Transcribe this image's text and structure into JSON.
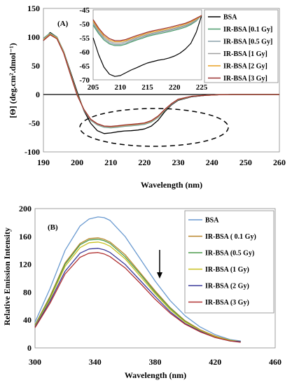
{
  "chart_data": [
    {
      "type": "line",
      "panel_label": "(A)",
      "xlabel": "Wavelength (nm)",
      "ylabel": "[Θ] (deg.cm².dmol⁻¹)",
      "xlim": [
        190,
        260
      ],
      "ylim": [
        -100,
        150
      ],
      "xticks": [
        "190",
        "200",
        "210",
        "220",
        "230",
        "240",
        "250",
        "260"
      ],
      "yticks": [
        "150",
        "100",
        "50",
        "0",
        "-50",
        "-100"
      ],
      "legend_position": "top-right",
      "annotations": [
        "dashed ellipse highlighting region 205–225 nm"
      ],
      "x": [
        190,
        192,
        194,
        196,
        198,
        200,
        202,
        204,
        206,
        208,
        210,
        212,
        214,
        216,
        218,
        220,
        222,
        224,
        226,
        228,
        230,
        234,
        238,
        242,
        246,
        250,
        255,
        260
      ],
      "series": [
        {
          "name": "BSA",
          "color": "#000000",
          "values": [
            94,
            108,
            100,
            75,
            40,
            5,
            -28,
            -50,
            -63,
            -68,
            -67,
            -65,
            -63.5,
            -63,
            -62,
            -60,
            -55,
            -45,
            -30,
            -18,
            -10,
            -4,
            -1.5,
            -0.5,
            0,
            0,
            0,
            0
          ]
        },
        {
          "name": "IR-BSA [0.1 Gy]",
          "color": "#4a9a6a",
          "values": [
            98,
            107,
            100,
            75,
            38,
            2,
            -27,
            -45,
            -53,
            -57,
            -58,
            -57,
            -55.5,
            -54.5,
            -53.5,
            -52,
            -48,
            -40,
            -28,
            -17,
            -9,
            -3.5,
            -1.5,
            -0.5,
            0,
            0,
            0,
            0
          ]
        },
        {
          "name": "IR-BSA [0.5 Gy]",
          "color": "#8aa0a8",
          "values": [
            97,
            106,
            99,
            74,
            37,
            1,
            -27,
            -44.5,
            -52.5,
            -56.5,
            -57.5,
            -56.5,
            -55,
            -54,
            -53,
            -51.5,
            -47.5,
            -39.5,
            -27.5,
            -17,
            -9,
            -3.5,
            -1.5,
            -0.5,
            0,
            0,
            0,
            0
          ]
        },
        {
          "name": "IR-BSA [1 Gy]",
          "color": "#a0a0a0",
          "values": [
            96,
            106,
            99,
            74,
            37,
            1,
            -26.5,
            -44,
            -52,
            -56,
            -57,
            -56,
            -54.5,
            -53.5,
            -52.5,
            -51,
            -47,
            -39,
            -27,
            -16.5,
            -8.5,
            -3.5,
            -1.5,
            -0.5,
            0,
            0,
            0,
            0
          ]
        },
        {
          "name": "IR-BSA [2 Gy]",
          "color": "#e8a020",
          "values": [
            95,
            105,
            98,
            73,
            36,
            0,
            -26,
            -43,
            -51,
            -55,
            -56,
            -55,
            -53.5,
            -52.5,
            -51.5,
            -50,
            -46,
            -38,
            -26.5,
            -16,
            -8.5,
            -3,
            -1.5,
            -0.5,
            0,
            0,
            0,
            0
          ]
        },
        {
          "name": "IR-BSA [3 Gy]",
          "color": "#9a3030",
          "values": [
            94,
            104,
            97,
            72,
            35,
            -1,
            -26,
            -43,
            -51,
            -55,
            -55.5,
            -54.5,
            -53,
            -52,
            -51,
            -49.5,
            -45.5,
            -37.5,
            -26,
            -16,
            -8,
            -3,
            -1.5,
            -0.5,
            0,
            0,
            0,
            0
          ]
        }
      ]
    },
    {
      "type": "line",
      "subtype": "inset",
      "xlim": [
        205,
        225
      ],
      "ylim": [
        -70,
        -45
      ],
      "xticks": [
        "205",
        "210",
        "215",
        "220",
        "225"
      ],
      "yticks": [
        "-45",
        "-50",
        "-55",
        "-60",
        "-65",
        "-70"
      ],
      "x": [
        205,
        206,
        207,
        208,
        209,
        210,
        211,
        212,
        213,
        214,
        215,
        216,
        217,
        218,
        219,
        220,
        221,
        222,
        223,
        224,
        225
      ],
      "series": [
        {
          "name": "BSA",
          "color": "#000000",
          "values": [
            -55,
            -61,
            -65.5,
            -68,
            -68.8,
            -68.5,
            -67.5,
            -66.5,
            -65.7,
            -64.8,
            -64,
            -63.5,
            -63,
            -62.7,
            -62.2,
            -61.5,
            -60.5,
            -59,
            -57,
            -53,
            -47
          ]
        },
        {
          "name": "IR-BSA [0.1 Gy]",
          "color": "#4a9a6a",
          "values": [
            -50.5,
            -53.5,
            -55.8,
            -57.2,
            -57.8,
            -57.8,
            -57.3,
            -56.5,
            -55.8,
            -55.2,
            -54.5,
            -54,
            -53.6,
            -53.2,
            -52.8,
            -52.3,
            -51.8,
            -51.2,
            -50.3,
            -49,
            -47
          ]
        },
        {
          "name": "IR-BSA [0.5 Gy]",
          "color": "#8aa0a8",
          "values": [
            -50,
            -53,
            -55.3,
            -56.8,
            -57.4,
            -57.4,
            -56.9,
            -56.1,
            -55.4,
            -54.8,
            -54.1,
            -53.6,
            -53.2,
            -52.8,
            -52.4,
            -51.9,
            -51.4,
            -50.8,
            -50,
            -48.8,
            -47
          ]
        },
        {
          "name": "IR-BSA [1 Gy]",
          "color": "#a0a0a0",
          "values": [
            -49.5,
            -52.5,
            -54.8,
            -56.3,
            -56.9,
            -56.9,
            -56.4,
            -55.7,
            -55,
            -54.4,
            -53.8,
            -53.3,
            -52.9,
            -52.5,
            -52.1,
            -51.6,
            -51.1,
            -50.5,
            -49.7,
            -48.6,
            -47
          ]
        },
        {
          "name": "IR-BSA [2 Gy]",
          "color": "#e8a020",
          "values": [
            -49,
            -52,
            -54.3,
            -55.8,
            -56.4,
            -56.4,
            -56,
            -55.3,
            -54.6,
            -54,
            -53.4,
            -52.9,
            -52.5,
            -52.1,
            -51.7,
            -51.2,
            -50.7,
            -50.1,
            -49.3,
            -48.3,
            -47
          ]
        },
        {
          "name": "IR-BSA [3 Gy]",
          "color": "#9a3030",
          "values": [
            -48.5,
            -51.5,
            -53.8,
            -55.3,
            -56,
            -56,
            -55.6,
            -54.9,
            -54.2,
            -53.6,
            -53,
            -52.5,
            -52.1,
            -51.7,
            -51.3,
            -50.8,
            -50.3,
            -49.8,
            -49,
            -48,
            -47
          ]
        }
      ]
    },
    {
      "type": "line",
      "panel_label": "(B)",
      "xlabel": "Wavelength (nm)",
      "ylabel": "Relative Emission Intensity",
      "xlim": [
        300,
        460
      ],
      "ylim": [
        0,
        200
      ],
      "xticks": [
        "300",
        "340",
        "380",
        "420",
        "460"
      ],
      "yticks": [
        "200",
        "160",
        "120",
        "80",
        "40",
        "0"
      ],
      "legend_position": "top-right",
      "annotations": [
        "downward arrow indicating decreasing intensity"
      ],
      "x": [
        300,
        310,
        320,
        330,
        336,
        342,
        346,
        350,
        360,
        370,
        380,
        390,
        400,
        410,
        420,
        430,
        437
      ],
      "series": [
        {
          "name": "BSA",
          "color": "#6a9ad0",
          "values": [
            37,
            85,
            140,
            175,
            185,
            188,
            187,
            183,
            160,
            128,
            96,
            68,
            46,
            30,
            19,
            12,
            10
          ]
        },
        {
          "name": "IR-BSA ( 0.1 Gy)",
          "color": "#b8862a",
          "values": [
            33,
            74,
            122,
            150,
            157,
            158,
            156,
            152,
            134,
            108,
            82,
            58,
            39,
            26,
            17,
            11,
            9
          ]
        },
        {
          "name": "IR-BSA (0.5 Gy)",
          "color": "#4a9a4a",
          "values": [
            32,
            72,
            120,
            148,
            155,
            156,
            154,
            150,
            131,
            106,
            80,
            57,
            38,
            25,
            16,
            11,
            9
          ]
        },
        {
          "name": "IR-BSA (1 Gy)",
          "color": "#c8c020",
          "values": [
            31,
            70,
            117,
            144,
            151,
            152,
            150,
            146,
            128,
            103,
            78,
            55,
            37,
            25,
            16,
            11,
            9
          ]
        },
        {
          "name": "IR-BSA (2 Gy)",
          "color": "#3a3a9a",
          "values": [
            30,
            67,
            110,
            136,
            142,
            143,
            141,
            137,
            120,
            97,
            74,
            52,
            35,
            24,
            15,
            10,
            9
          ]
        },
        {
          "name": "IR-BSA (3 Gy)",
          "color": "#b03030",
          "values": [
            29,
            64,
            106,
            130,
            136,
            137,
            135,
            131,
            115,
            93,
            70,
            50,
            34,
            23,
            15,
            10,
            8
          ]
        }
      ]
    }
  ]
}
